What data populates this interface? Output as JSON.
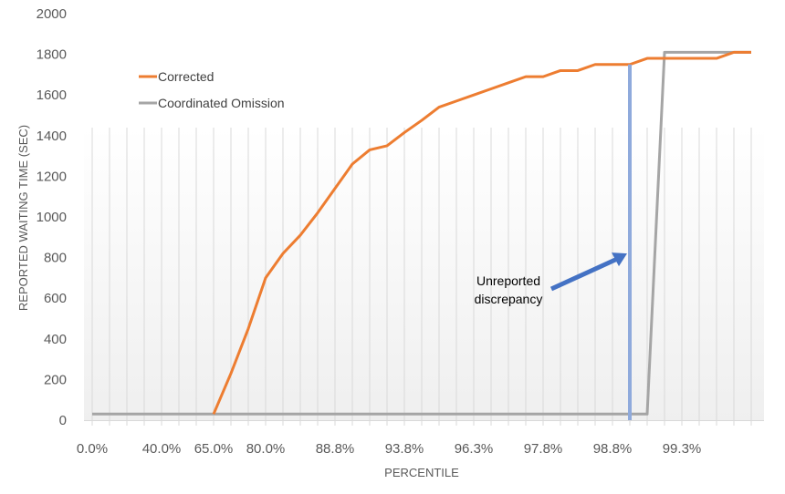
{
  "chart_data": {
    "type": "line",
    "title": "",
    "xlabel": "PERCENTILE",
    "ylabel": "REPORTED WAITING TIME (SEC)",
    "ylim": [
      0,
      2000
    ],
    "yticks": [
      0,
      200,
      400,
      600,
      800,
      1000,
      1200,
      1400,
      1600,
      1800,
      2000
    ],
    "category_count": 39,
    "tick_labels": [
      {
        "index": 0,
        "label": "0.0%"
      },
      {
        "index": 4,
        "label": "40.0%"
      },
      {
        "index": 7,
        "label": "65.0%"
      },
      {
        "index": 10,
        "label": "80.0%"
      },
      {
        "index": 14,
        "label": "88.8%"
      },
      {
        "index": 18,
        "label": "93.8%"
      },
      {
        "index": 22,
        "label": "96.3%"
      },
      {
        "index": 26,
        "label": "97.8%"
      },
      {
        "index": 30,
        "label": "98.8%"
      },
      {
        "index": 34,
        "label": "99.3%"
      }
    ],
    "grid": "vertical",
    "legend_position": "top-left",
    "series": [
      {
        "name": "Corrected",
        "color": "#ED7D31",
        "values": [
          null,
          null,
          null,
          null,
          null,
          null,
          null,
          30,
          230,
          450,
          700,
          820,
          910,
          1020,
          1140,
          1260,
          1330,
          1350,
          1415,
          1475,
          1540,
          1570,
          1600,
          1630,
          1660,
          1690,
          1690,
          1720,
          1720,
          1750,
          1750,
          1750,
          1780,
          1780,
          1780,
          1780,
          1780,
          1810,
          1810
        ]
      },
      {
        "name": "Coordinated Omission",
        "color": "#A5A5A5",
        "values": [
          30,
          30,
          30,
          30,
          30,
          30,
          30,
          30,
          30,
          30,
          30,
          30,
          30,
          30,
          30,
          30,
          30,
          30,
          30,
          30,
          30,
          30,
          30,
          30,
          30,
          30,
          30,
          30,
          30,
          30,
          30,
          30,
          30,
          1810,
          1810,
          1810,
          1810,
          1810,
          1810
        ]
      }
    ],
    "annotations": [
      {
        "text_lines": [
          "Unreported",
          "discrepancy"
        ],
        "marker_index": 31,
        "marker_value": 1750,
        "marker_color": "#8FAADC",
        "arrow_color": "#4472C4",
        "arrow_target_value": 820
      }
    ]
  }
}
